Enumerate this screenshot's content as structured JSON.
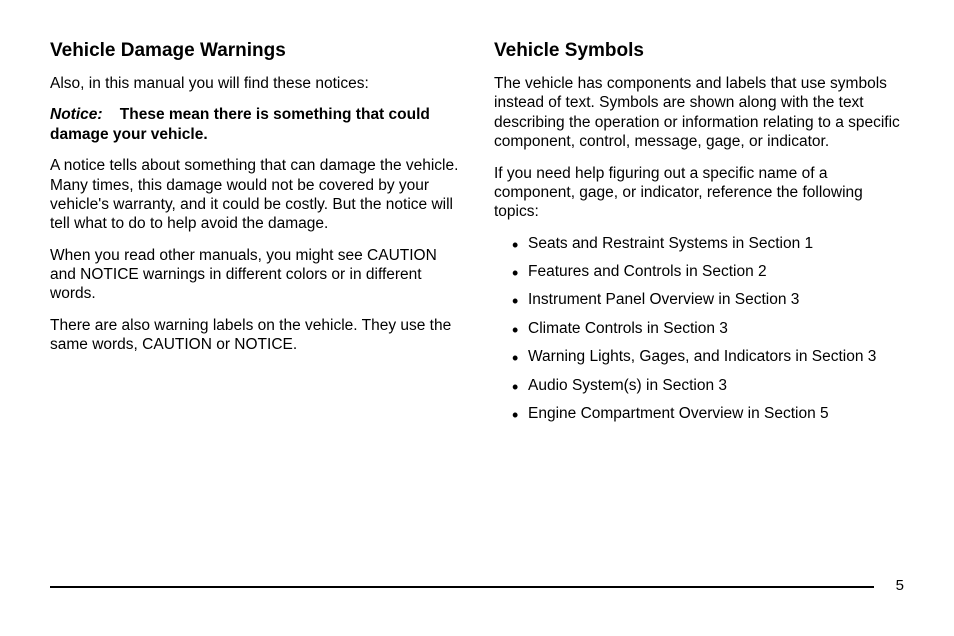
{
  "left_column": {
    "heading": "Vehicle Damage Warnings",
    "intro": "Also, in this manual you will find these notices:",
    "notice_label": "Notice:",
    "notice_text": "These mean there is something that could damage your vehicle.",
    "para1": "A notice tells about something that can damage the vehicle. Many times, this damage would not be covered by your vehicle's warranty, and it could be costly. But the notice will tell what to do to help avoid the damage.",
    "para2": "When you read other manuals, you might see CAUTION and NOTICE warnings in different colors or in different words.",
    "para3": "There are also warning labels on the vehicle. They use the same words, CAUTION or NOTICE."
  },
  "right_column": {
    "heading": "Vehicle Symbols",
    "para1": "The vehicle has components and labels that use symbols instead of text. Symbols are shown along with the text describing the operation or information relating to a specific component, control, message, gage, or indicator.",
    "para2": "If you need help figuring out a specific name of a component, gage, or indicator, reference the following topics:",
    "bullets": [
      "Seats and Restraint Systems in Section 1",
      "Features and Controls in Section 2",
      "Instrument Panel Overview in Section 3",
      "Climate Controls in Section 3",
      "Warning Lights, Gages, and Indicators in Section 3",
      "Audio System(s) in Section 3",
      "Engine Compartment Overview in Section 5"
    ]
  },
  "page_number": "5",
  "styles": {
    "background_color": "#ffffff",
    "text_color": "#000000",
    "heading_fontsize": 19,
    "body_fontsize": 15.5,
    "line_color": "#000000"
  }
}
